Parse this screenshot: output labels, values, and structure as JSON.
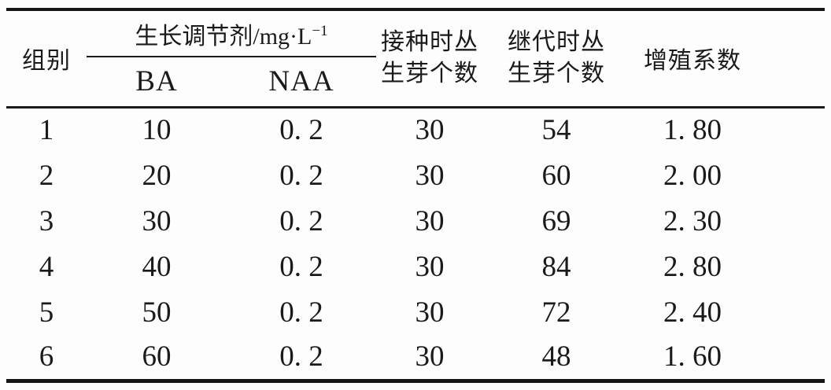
{
  "table": {
    "header": {
      "group_col": "组别",
      "regulator_group_label": "生长调节剂/mg·L",
      "regulator_group_sup": "−1",
      "sub_ba": "BA",
      "sub_naa": "NAA",
      "inoculation_col": "接种时丛\n生芽个数",
      "subculture_col": "继代时丛\n生芽个数",
      "coefficient_col": "增殖系数"
    },
    "rows": [
      [
        "1",
        "10",
        "0. 2",
        "30",
        "54",
        "1. 80"
      ],
      [
        "2",
        "20",
        "0. 2",
        "30",
        "60",
        "2. 00"
      ],
      [
        "3",
        "30",
        "0. 2",
        "30",
        "69",
        "2. 30"
      ],
      [
        "4",
        "40",
        "0. 2",
        "30",
        "84",
        "2. 80"
      ],
      [
        "5",
        "50",
        "0. 2",
        "30",
        "72",
        "2. 40"
      ],
      [
        "6",
        "60",
        "0. 2",
        "30",
        "48",
        "1. 60"
      ]
    ]
  },
  "chart_data": {
    "type": "table",
    "column_group": {
      "label": "生长调节剂/mg·L⁻¹",
      "spans": [
        "BA",
        "NAA"
      ]
    },
    "columns": [
      "组别",
      "BA",
      "NAA",
      "接种时丛生芽个数",
      "继代时丛生芽个数",
      "增殖系数"
    ],
    "rows": [
      [
        1,
        10,
        0.2,
        30,
        54,
        1.8
      ],
      [
        2,
        20,
        0.2,
        30,
        60,
        2.0
      ],
      [
        3,
        30,
        0.2,
        30,
        69,
        2.3
      ],
      [
        4,
        40,
        0.2,
        30,
        84,
        2.8
      ],
      [
        5,
        50,
        0.2,
        30,
        72,
        2.4
      ],
      [
        6,
        60,
        0.2,
        30,
        48,
        1.6
      ]
    ]
  },
  "colors": {
    "text": "#1a1a1a",
    "rule": "#161616",
    "background": "#fdfdfd"
  }
}
